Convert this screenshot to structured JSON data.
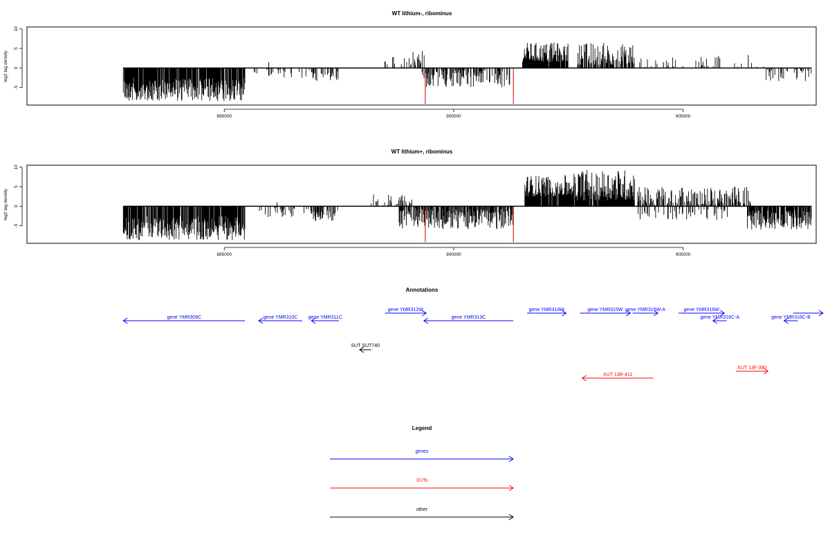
{
  "chart_data": [
    {
      "type": "bar",
      "title": "WT lithium-, ribominus",
      "xlabel": "",
      "ylabel": "log2 tag density",
      "xlim": [
        890700,
        907900
      ],
      "ylim": [
        -9.5,
        10.5
      ],
      "yticks": [
        -5,
        0,
        5,
        10
      ],
      "xticks": [
        895000,
        900000,
        905000
      ],
      "xtick_labels": [
        "895000",
        "900000",
        "905000"
      ],
      "ytick_labels": [
        "-5",
        "0",
        "5",
        "10"
      ],
      "baseline_range": [
        892800,
        907800
      ],
      "segments": [
        {
          "from": 892800,
          "to": 895450,
          "min": -8.5,
          "max": -2.5,
          "density": 0.9
        },
        {
          "from": 895650,
          "to": 896900,
          "min": -2.6,
          "max": -0.3,
          "density": 0.15
        },
        {
          "from": 896900,
          "to": 897500,
          "min": -3.3,
          "max": -0.8,
          "density": 0.45
        },
        {
          "from": 898500,
          "to": 899050,
          "min": 0.3,
          "max": 3.0,
          "density": 0.25
        },
        {
          "from": 899050,
          "to": 899400,
          "min": 0.5,
          "max": 4.5,
          "density": 0.3
        },
        {
          "from": 899300,
          "to": 901250,
          "min": -5.0,
          "max": -0.5,
          "density": 0.55
        },
        {
          "from": 901500,
          "to": 902500,
          "min": 1.5,
          "max": 6.5,
          "density": 0.95
        },
        {
          "from": 902700,
          "to": 903950,
          "min": 0.8,
          "max": 6.5,
          "density": 0.7
        },
        {
          "from": 904000,
          "to": 905800,
          "min": 0.3,
          "max": 3.2,
          "density": 0.12
        },
        {
          "from": 905900,
          "to": 906800,
          "min": 0.3,
          "max": 2.5,
          "density": 0.08
        },
        {
          "from": 906800,
          "to": 907800,
          "min": -3.5,
          "max": -0.3,
          "density": 0.25
        }
      ],
      "singles": [
        {
          "x": 895970,
          "y": 1.5,
          "color": "#000000"
        },
        {
          "x": 904570,
          "y": 1.5,
          "color": "#000000"
        },
        {
          "x": 905800,
          "y": 2.5,
          "color": "#000000"
        },
        {
          "x": 906420,
          "y": 3.3,
          "color": "#000000"
        },
        {
          "x": 899380,
          "y": -9.2,
          "color": "#cc0000"
        },
        {
          "x": 901300,
          "y": -9.2,
          "color": "#cc0000"
        }
      ]
    },
    {
      "type": "bar",
      "title": "WT lithium+, ribominus",
      "xlabel": "",
      "ylabel": "log2 tag density",
      "xlim": [
        890700,
        907900
      ],
      "ylim": [
        -9.5,
        10.5
      ],
      "yticks": [
        -5,
        0,
        5,
        10
      ],
      "xticks": [
        895000,
        900000,
        905000
      ],
      "xtick_labels": [
        "895000",
        "900000",
        "905000"
      ],
      "ytick_labels": [
        "-5",
        "0",
        "5",
        "10"
      ],
      "baseline_range": [
        892800,
        907800
      ],
      "segments": [
        {
          "from": 892800,
          "to": 895450,
          "min": -8.7,
          "max": -2.5,
          "density": 0.9
        },
        {
          "from": 895650,
          "to": 896900,
          "min": -3.0,
          "max": -0.3,
          "density": 0.2
        },
        {
          "from": 896900,
          "to": 897500,
          "min": -4.0,
          "max": -1.0,
          "density": 0.5
        },
        {
          "from": 898200,
          "to": 899100,
          "min": 0.3,
          "max": 3.2,
          "density": 0.3
        },
        {
          "from": 898800,
          "to": 901300,
          "min": -6.0,
          "max": -0.5,
          "density": 0.8
        },
        {
          "from": 901550,
          "to": 902600,
          "min": 2.5,
          "max": 8.0,
          "density": 0.95
        },
        {
          "from": 902600,
          "to": 903950,
          "min": 1.5,
          "max": 9.5,
          "density": 0.95
        },
        {
          "from": 904000,
          "to": 906500,
          "min": 0.5,
          "max": 5.0,
          "density": 0.55
        },
        {
          "from": 904000,
          "to": 906000,
          "min": -3.5,
          "max": -0.5,
          "density": 0.25
        },
        {
          "from": 906400,
          "to": 907800,
          "min": -6.0,
          "max": -1.0,
          "density": 0.85
        }
      ],
      "singles": [
        {
          "x": 896150,
          "y": 1.0,
          "color": "#000000"
        },
        {
          "x": 899380,
          "y": -9.2,
          "color": "#cc0000"
        },
        {
          "x": 901300,
          "y": -9.2,
          "color": "#cc0000"
        }
      ]
    }
  ],
  "annotations": {
    "title": "Annotations",
    "genes": [
      {
        "label": "gene YMR309C",
        "from": 895450,
        "to": 892800,
        "row": 1,
        "color": "#0000ff"
      },
      {
        "label": "gene YMR310C",
        "from": 896700,
        "to": 895750,
        "row": 1,
        "color": "#0000ff"
      },
      {
        "label": "gene YMR311C",
        "from": 897500,
        "to": 896900,
        "row": 1,
        "color": "#0000ff"
      },
      {
        "label": "gene YMR312W",
        "from": 898500,
        "to": 899400,
        "row": 0,
        "color": "#0000ff"
      },
      {
        "label": "gene YMR313C",
        "from": 901300,
        "to": 899350,
        "row": 1,
        "color": "#0000ff"
      },
      {
        "label": "gene YMR314W",
        "from": 901600,
        "to": 902450,
        "row": 0,
        "color": "#0000ff"
      },
      {
        "label": "gene YMR315W",
        "from": 902750,
        "to": 903850,
        "row": 0,
        "color": "#0000ff"
      },
      {
        "label": "gene YMR315W-A",
        "from": 903900,
        "to": 904450,
        "row": 0,
        "color": "#0000ff"
      },
      {
        "label": "gene YMR316W",
        "from": 904900,
        "to": 905900,
        "row": 0,
        "color": "#0000ff"
      },
      {
        "label": "gene YMR316C-A",
        "from": 905950,
        "to": 905650,
        "row": 1,
        "color": "#0000ff"
      },
      {
        "label": "gene YMR316C-B",
        "from": 907500,
        "to": 907200,
        "row": 1,
        "color": "#0000ff"
      },
      {
        "label": "",
        "from": 907400,
        "to": 908050,
        "row": 0,
        "color": "#0000ff"
      }
    ],
    "other": [
      {
        "label": "SUT SUT740",
        "from": 898200,
        "to": 897950,
        "color": "#000000"
      }
    ],
    "xuts": [
      {
        "label": "XUT 13R-411",
        "from": 904350,
        "to": 902800,
        "row": 1,
        "color": "#ff0000"
      },
      {
        "label": "XUT 13F-390",
        "from": 906150,
        "to": 906850,
        "row": 0,
        "color": "#ff0000"
      }
    ]
  },
  "legend": {
    "title": "Legend",
    "items": [
      {
        "label": "genes",
        "color": "#0000ff"
      },
      {
        "label": "XUTs",
        "color": "#ff0000"
      },
      {
        "label": "other",
        "color": "#000000"
      }
    ]
  }
}
